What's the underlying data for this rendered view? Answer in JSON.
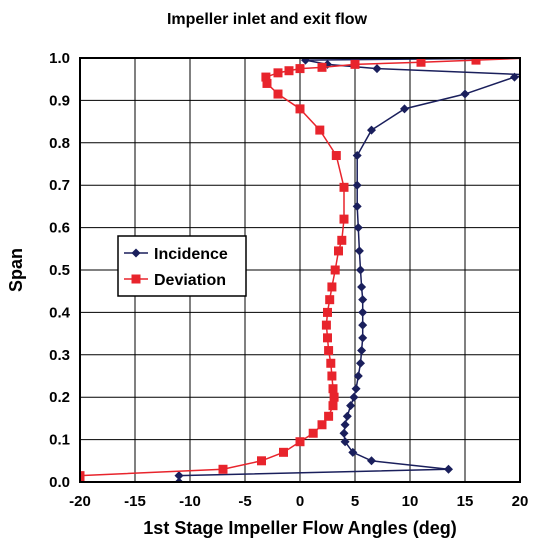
{
  "chart_data": {
    "type": "line",
    "title": "Impeller inlet and exit flow",
    "xlabel": "1st Stage Impeller Flow Angles (deg)",
    "ylabel": "Span",
    "xlim": [
      -20,
      20
    ],
    "ylim": [
      0.0,
      1.0
    ],
    "xticks": [
      "-20",
      "-15",
      "-10",
      "-5",
      "0",
      "5",
      "10",
      "15",
      "20"
    ],
    "yticks": [
      "0.0",
      "0.1",
      "0.2",
      "0.3",
      "0.4",
      "0.5",
      "0.6",
      "0.7",
      "0.8",
      "0.9",
      "1.0"
    ],
    "grid": true,
    "legend_position": "center-left",
    "series": [
      {
        "name": "Incidence",
        "color": "#1a1f5c",
        "marker": "diamond",
        "points": [
          [
            -11,
            0.0
          ],
          [
            -11,
            0.015
          ],
          [
            13.5,
            0.03
          ],
          [
            6.5,
            0.05
          ],
          [
            4.8,
            0.07
          ],
          [
            4.1,
            0.095
          ],
          [
            4.0,
            0.115
          ],
          [
            4.1,
            0.135
          ],
          [
            4.3,
            0.155
          ],
          [
            4.6,
            0.18
          ],
          [
            4.9,
            0.2
          ],
          [
            5.1,
            0.22
          ],
          [
            5.3,
            0.25
          ],
          [
            5.5,
            0.28
          ],
          [
            5.6,
            0.31
          ],
          [
            5.7,
            0.34
          ],
          [
            5.7,
            0.37
          ],
          [
            5.7,
            0.4
          ],
          [
            5.7,
            0.43
          ],
          [
            5.6,
            0.46
          ],
          [
            5.5,
            0.5
          ],
          [
            5.4,
            0.545
          ],
          [
            5.3,
            0.6
          ],
          [
            5.2,
            0.65
          ],
          [
            5.2,
            0.7
          ],
          [
            5.2,
            0.77
          ],
          [
            6.5,
            0.83
          ],
          [
            9.5,
            0.88
          ],
          [
            15.0,
            0.915
          ],
          [
            19.5,
            0.955
          ],
          [
            21.0,
            0.96
          ],
          [
            7.0,
            0.975
          ],
          [
            2.5,
            0.985
          ],
          [
            0.5,
            0.995
          ],
          [
            21.0,
            1.0
          ]
        ]
      },
      {
        "name": "Deviation",
        "color": "#e8242c",
        "marker": "square",
        "points": [
          [
            -20,
            0.01
          ],
          [
            -20,
            0.015
          ],
          [
            -7.0,
            0.03
          ],
          [
            -3.5,
            0.05
          ],
          [
            -1.5,
            0.07
          ],
          [
            0.0,
            0.095
          ],
          [
            1.2,
            0.115
          ],
          [
            2.0,
            0.135
          ],
          [
            2.6,
            0.155
          ],
          [
            3.0,
            0.18
          ],
          [
            3.1,
            0.2
          ],
          [
            3.0,
            0.22
          ],
          [
            2.9,
            0.25
          ],
          [
            2.8,
            0.28
          ],
          [
            2.6,
            0.31
          ],
          [
            2.5,
            0.34
          ],
          [
            2.4,
            0.37
          ],
          [
            2.5,
            0.4
          ],
          [
            2.7,
            0.43
          ],
          [
            2.9,
            0.46
          ],
          [
            3.2,
            0.5
          ],
          [
            3.5,
            0.545
          ],
          [
            3.8,
            0.57
          ],
          [
            4.0,
            0.62
          ],
          [
            4.0,
            0.695
          ],
          [
            3.3,
            0.77
          ],
          [
            1.8,
            0.83
          ],
          [
            0.0,
            0.88
          ],
          [
            -2.0,
            0.915
          ],
          [
            -3.0,
            0.94
          ],
          [
            -3.1,
            0.955
          ],
          [
            -2.0,
            0.965
          ],
          [
            -1.0,
            0.97
          ],
          [
            0.0,
            0.975
          ],
          [
            2.0,
            0.978
          ],
          [
            5.0,
            0.985
          ],
          [
            11.0,
            0.99
          ],
          [
            16.0,
            0.995
          ],
          [
            21.0,
            1.0
          ]
        ]
      }
    ]
  }
}
